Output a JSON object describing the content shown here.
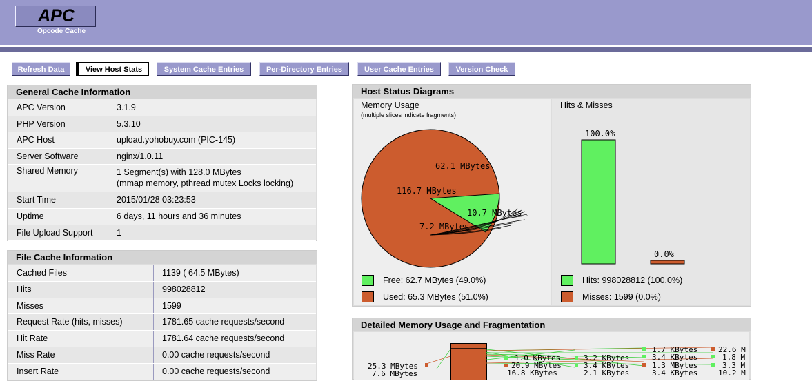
{
  "app": {
    "title": "APC",
    "subtitle": "Opcode Cache"
  },
  "nav": [
    {
      "label": "Refresh Data",
      "active": false
    },
    {
      "label": "View Host Stats",
      "active": true
    },
    {
      "label": "System Cache Entries",
      "active": false
    },
    {
      "label": "Per-Directory Entries",
      "active": false
    },
    {
      "label": "User Cache Entries",
      "active": false
    },
    {
      "label": "Version Check",
      "active": false
    }
  ],
  "general": {
    "title": "General Cache Information",
    "rows": [
      {
        "key": "APC Version",
        "value": "3.1.9"
      },
      {
        "key": "PHP Version",
        "value": "5.3.10"
      },
      {
        "key": "APC Host",
        "value": "upload.yohobuy.com (PIC-145)"
      },
      {
        "key": "Server Software",
        "value": "nginx/1.0.11"
      },
      {
        "key": "Shared Memory",
        "value": "1 Segment(s) with 128.0 MBytes",
        "value2": "(mmap memory, pthread mutex Locks locking)"
      },
      {
        "key": "Start Time",
        "value": "2015/01/28 03:23:53"
      },
      {
        "key": "Uptime",
        "value": "6 days, 11 hours and 36 minutes"
      },
      {
        "key": "File Upload Support",
        "value": "1"
      }
    ]
  },
  "filecache": {
    "title": "File Cache Information",
    "rows": [
      {
        "key": "Cached Files",
        "value": "1139 ( 64.5 MBytes)"
      },
      {
        "key": "Hits",
        "value": "998028812"
      },
      {
        "key": "Misses",
        "value": "1599"
      },
      {
        "key": "Request Rate (hits, misses)",
        "value": "1781.65 cache requests/second"
      },
      {
        "key": "Hit Rate",
        "value": "1781.64 cache requests/second"
      },
      {
        "key": "Miss Rate",
        "value": "0.00 cache requests/second"
      },
      {
        "key": "Insert Rate",
        "value": "0.00 cache requests/second"
      }
    ]
  },
  "host": {
    "title": "Host Status Diagrams",
    "memory": {
      "title": "Memory Usage",
      "note": "(multiple slices indicate fragments)",
      "label_free": "62.1 MBytes",
      "label_used": "116.7 MBytes",
      "label_small1": "10.7 MBytes",
      "label_small2": "7.2 MBytes",
      "free_legend": "Free: 62.7 MBytes (49.0%)",
      "used_legend": "Used: 65.3 MBytes (51.0%)"
    },
    "hits": {
      "title": "Hits & Misses",
      "hit_pct_label": "100.0%",
      "miss_pct_label": "0.0%",
      "hit_pct": 100.0,
      "miss_pct": 0.0,
      "hits_legend": "Hits: 998028812 (100.0%)",
      "misses_legend": "Misses: 1599 (0.0%)"
    },
    "colors": {
      "free": "#60f060",
      "used": "#cc5c2e"
    }
  },
  "detailed": {
    "title": "Detailed Memory Usage and Fragmentation",
    "left_labels": [
      "25.3 MBytes",
      "7.6 MBytes"
    ],
    "col1_labels": [
      "1.0 KBytes",
      "20.9 MBytes",
      "16.8 KBytes"
    ],
    "col2_labels": [
      "3.2 KBytes",
      "3.4 KBytes",
      "2.1 KBytes"
    ],
    "col3_labels": [
      "1.7 KBytes",
      "3.4 KBytes",
      "1.3 MBytes",
      "3.4 KBytes"
    ],
    "col4_labels": [
      "22.6 M",
      "1.8 M",
      "3.3 M",
      "10.2 M"
    ]
  }
}
